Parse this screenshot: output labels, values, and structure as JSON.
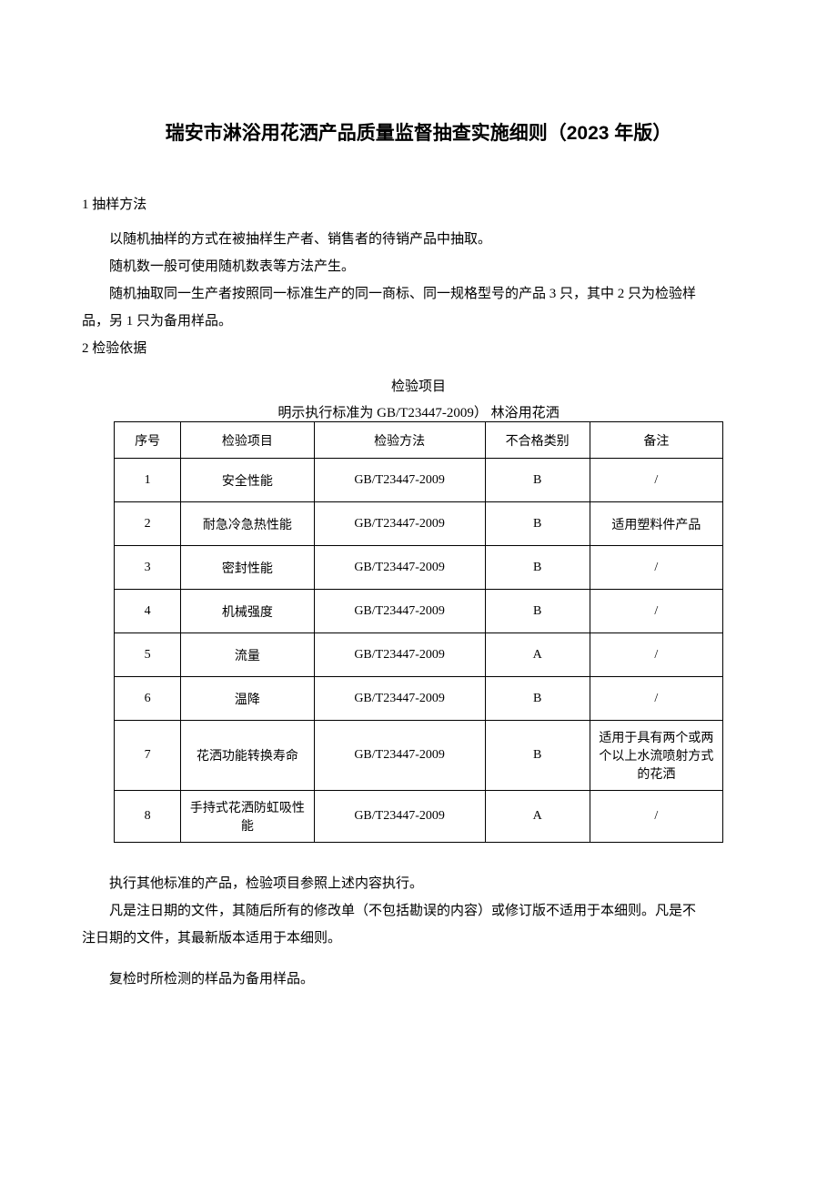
{
  "title": "瑞安市淋浴用花洒产品质量监督抽查实施细则（2023 年版）",
  "section1_heading": "1 抽样方法",
  "section1_p1": "以随机抽样的方式在被抽样生产者、销售者的待销产品中抽取。",
  "section1_p2": "随机数一般可使用随机数表等方法产生。",
  "section1_p3a": "随机抽取同一生产者按照同一标准生产的同一商标、同一规格型号的产品 3 只，其中 2 只为检验样",
  "section1_p3b": "品，另 1 只为备用样品。",
  "section2_heading": "2 检验依据",
  "table_title": "检验项目",
  "table_subtitle": "明示执行标准为 GB/T23447-2009） 林浴用花洒",
  "headers": {
    "seq": "序号",
    "item": "检验项目",
    "method": "检验方法",
    "category": "不合格类别",
    "note": "备注"
  },
  "rows": [
    {
      "seq": "1",
      "item": "安全性能",
      "method": "GB/T23447-2009",
      "category": "B",
      "note": "/"
    },
    {
      "seq": "2",
      "item": "耐急冷急热性能",
      "method": "GB/T23447-2009",
      "category": "B",
      "note": "适用塑料件产品"
    },
    {
      "seq": "3",
      "item": "密封性能",
      "method": "GB/T23447-2009",
      "category": "B",
      "note": "/"
    },
    {
      "seq": "4",
      "item": "机械强度",
      "method": "GB/T23447-2009",
      "category": "B",
      "note": "/"
    },
    {
      "seq": "5",
      "item": "流量",
      "method": "GB/T23447-2009",
      "category": "A",
      "note": "/"
    },
    {
      "seq": "6",
      "item": "温降",
      "method": "GB/T23447-2009",
      "category": "B",
      "note": "/"
    },
    {
      "seq": "7",
      "item": "花洒功能转换寿命",
      "method": "GB/T23447-2009",
      "category": "B",
      "note": "适用于具有两个或两个以上水流喷射方式的花洒"
    },
    {
      "seq": "8",
      "item": "手持式花洒防虹吸性能",
      "method": "GB/T23447-2009",
      "category": "A",
      "note": "/"
    }
  ],
  "after_p1": "执行其他标准的产品，检验项目参照上述内容执行。",
  "after_p2a": "凡是注日期的文件，其随后所有的修改单（不包括勘误的内容）或修订版不适用于本细则。凡是不",
  "after_p2b": "注日期的文件，其最新版本适用于本细则。",
  "after_p3": "复检时所检测的样品为备用样品。"
}
